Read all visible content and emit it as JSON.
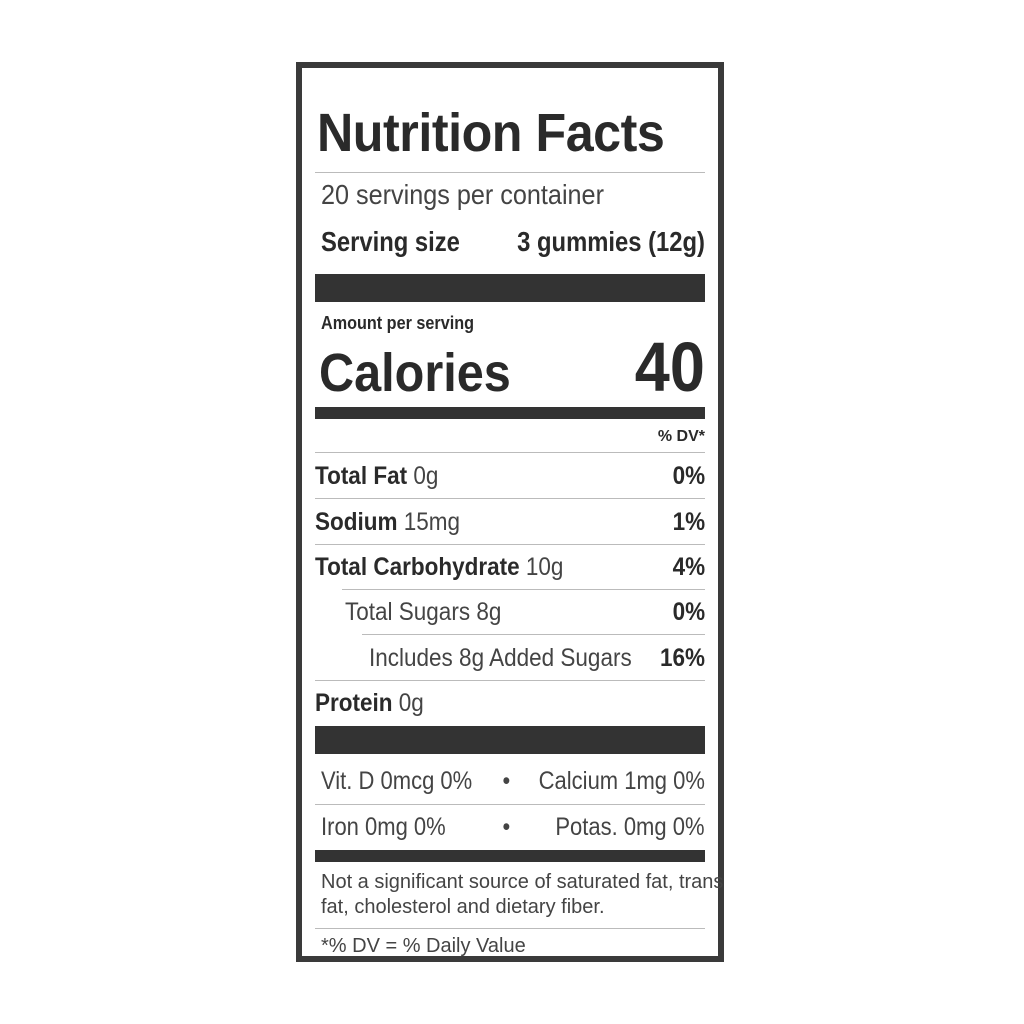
{
  "title": "Nutrition Facts",
  "servings_per_container": "20 servings per container",
  "serving_size_label": "Serving size",
  "serving_size_value": "3 gummies (12g)",
  "amount_per_serving": "Amount per serving",
  "calories_label": "Calories",
  "calories_value": "40",
  "dv_header": "% DV*",
  "nutrients": [
    {
      "name": "Total Fat",
      "amount": "0g",
      "dv": "0%"
    },
    {
      "name": "Sodium",
      "amount": "15mg",
      "dv": "1%"
    },
    {
      "name": "Total Carbohydrate",
      "amount": "10g",
      "dv": "4%"
    },
    {
      "name": "",
      "amount": "Total Sugars 8g",
      "dv": "0%"
    },
    {
      "name": "",
      "amount": "Includes 8g Added Sugars",
      "dv": "16%"
    },
    {
      "name": "Protein",
      "amount": "0g",
      "dv": ""
    }
  ],
  "vitamins": [
    {
      "left": "Vit. D 0mcg 0%",
      "separator": "•",
      "right": "Calcium 1mg 0%"
    },
    {
      "left": "Iron 0mg 0%",
      "separator": "•",
      "right": "Potas. 0mg 0%"
    }
  ],
  "footnote_lines": [
    "Not a significant source of saturated fat, trans",
    "fat, cholesterol and dietary fiber."
  ],
  "dv_note": "*% DV = % Daily Value"
}
